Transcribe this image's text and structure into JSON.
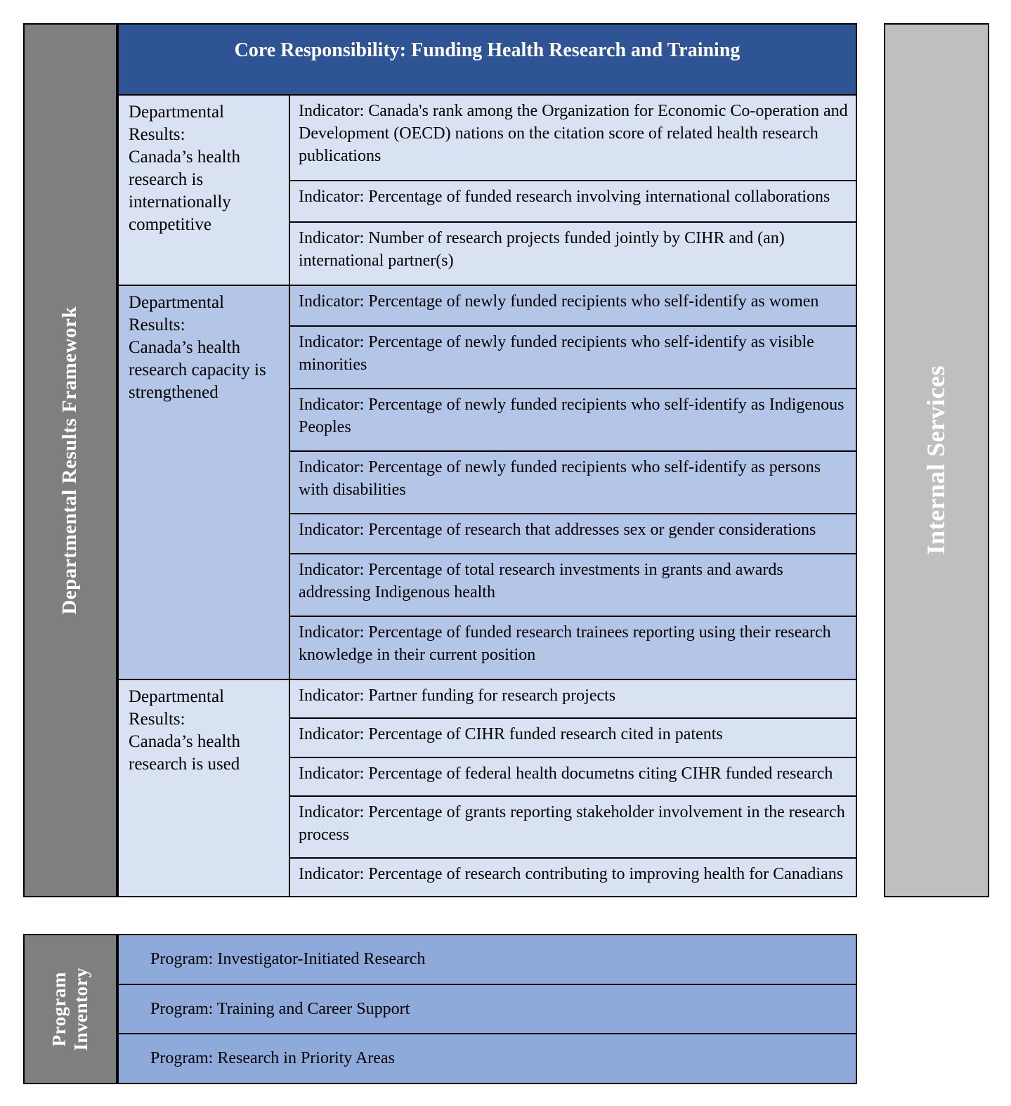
{
  "frame": {
    "left_bar_label": "Departmental Results Framework",
    "right_bar_label": "Internal Services",
    "program_bar_label": "Program\nInventory"
  },
  "core_responsibility": {
    "title": "Core Responsibility: Funding Health Research and Training",
    "sections": [
      {
        "result": "Departmental Results:\nCanada’s health research is internationally competitive",
        "tone": "light",
        "indicators": [
          "Indicator: Canada's rank among the Organization for Economic Co-operation and Development (OECD) nations on the citation score of related health research publications",
          "Indicator: Percentage of funded research involving international collaborations",
          "Indicator: Number of research projects funded jointly by CIHR and (an) international partner(s)"
        ]
      },
      {
        "result": "Departmental Results:\nCanada’s health research capacity is strengthened",
        "tone": "medium",
        "indicators": [
          "Indicator: Percentage of newly funded recipients who self-identify as women",
          "Indicator: Percentage of newly funded recipients who self-identify as visible minorities",
          "Indicator: Percentage of newly funded recipients who self-identify as Indigenous Peoples",
          "Indicator: Percentage of newly funded recipients who self-identify as persons with disabilities",
          "Indicator: Percentage of research that addresses sex or gender considerations",
          "Indicator: Percentage of total research investments in grants and awards addressing Indigenous health",
          "Indicator: Percentage of funded research trainees reporting using their research knowledge in their current position"
        ]
      },
      {
        "result": "Departmental Results:\nCanada’s health research is used",
        "tone": "light",
        "indicators": [
          "Indicator: Partner funding for research projects",
          "Indicator: Percentage of CIHR funded research cited in patents",
          "Indicator: Percentage of federal health documetns citing CIHR funded research",
          "Indicator: Percentage of grants reporting stakeholder involvement in the research process",
          "Indicator: Percentage of research contributing to improving health for Canadians"
        ]
      }
    ]
  },
  "program_inventory": {
    "programs": [
      "Program: Investigator-Initiated Research",
      "Program: Training and Career Support",
      "Program: Research in Priority Areas"
    ]
  },
  "colors": {
    "header_blue": "#2F5496",
    "light_blue": "#D9E2F3",
    "medium_blue": "#B4C6E7",
    "program_blue": "#8EAADB",
    "dark_gray": "#7F7F7F",
    "light_gray": "#BFBFBF",
    "border": "#000000",
    "header_text": "#FFFFFF"
  }
}
